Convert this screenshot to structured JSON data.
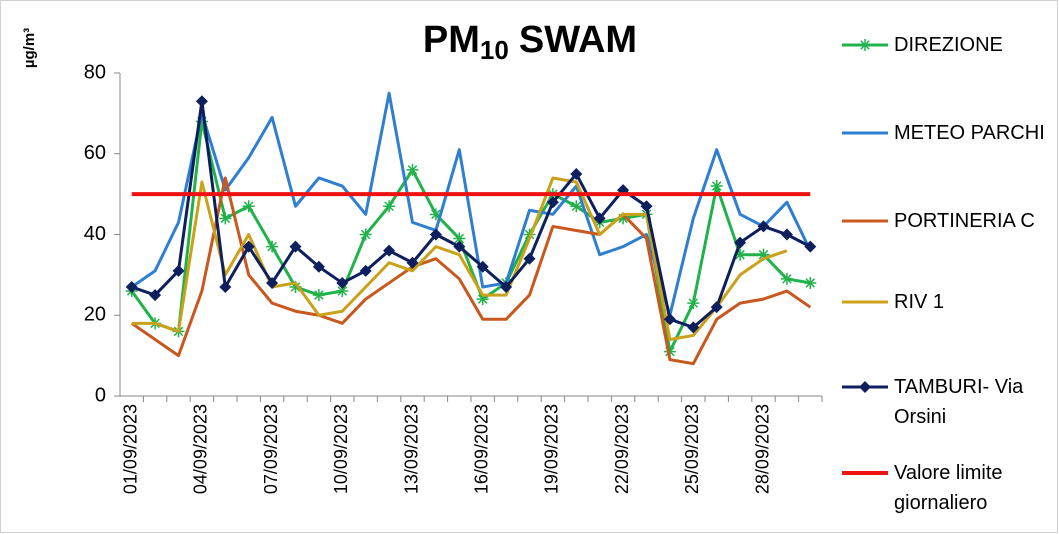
{
  "chart_data": {
    "type": "line",
    "title": [
      "PM",
      "10",
      "SWAM"
    ],
    "y_label": "µg/m³",
    "categories": [
      "01/09/2023",
      null,
      null,
      "04/09/2023",
      null,
      null,
      "07/09/2023",
      null,
      null,
      "10/09/2023",
      null,
      null,
      "13/09/2023",
      null,
      null,
      "16/09/2023",
      null,
      null,
      "19/09/2023",
      null,
      null,
      "22/09/2023",
      null,
      null,
      "25/09/2023",
      null,
      null,
      "28/09/2023",
      null,
      null
    ],
    "ylim": [
      0,
      80
    ],
    "yticks": [
      0,
      20,
      40,
      60,
      80
    ],
    "grid": false,
    "series": [
      {
        "name": "DIREZIONE",
        "color": "#22b24c",
        "marker": "star",
        "values": [
          26,
          18,
          16,
          68,
          44,
          47,
          37,
          27,
          25,
          26,
          40,
          47,
          56,
          45,
          39,
          24,
          28,
          40,
          50,
          47,
          43,
          44,
          45,
          11,
          23,
          52,
          35,
          35,
          29,
          28
        ]
      },
      {
        "name": "METEO PARCHI",
        "color": "#2f7fd0",
        "marker": "none",
        "values": [
          27,
          31,
          43,
          70,
          51,
          59,
          69,
          47,
          54,
          52,
          45,
          75,
          43,
          41,
          61,
          27,
          28,
          46,
          45,
          52,
          35,
          37,
          40,
          20,
          44,
          61,
          45,
          42,
          48,
          36
        ]
      },
      {
        "name": "PORTINERIA C",
        "color": "#c8581e",
        "marker": "none",
        "values": [
          18,
          14,
          10,
          26,
          54,
          30,
          23,
          21,
          20,
          18,
          24,
          28,
          32,
          34,
          29,
          19,
          19,
          25,
          42,
          41,
          40,
          45,
          39,
          9,
          8,
          19,
          23,
          24,
          26,
          22
        ]
      },
      {
        "name": "RIV 1",
        "color": "#c9a21a",
        "marker": "none",
        "values": [
          18,
          18,
          16,
          53,
          30,
          40,
          27,
          28,
          20,
          21,
          27,
          33,
          31,
          37,
          35,
          25,
          25,
          39,
          54,
          53,
          40,
          45,
          45,
          14,
          15,
          22,
          30,
          34,
          36,
          null
        ]
      },
      {
        "name": "TAMBURI- Via Orsini",
        "color": "#0d1f5c",
        "marker": "diamond",
        "values": [
          27,
          25,
          31,
          73,
          27,
          37,
          28,
          37,
          32,
          28,
          31,
          36,
          33,
          40,
          37,
          32,
          27,
          34,
          48,
          55,
          44,
          51,
          47,
          19,
          17,
          22,
          38,
          42,
          40,
          37
        ]
      },
      {
        "name": "Valore limite giornaliero",
        "color": "#ee1111",
        "marker": "none",
        "width": 4,
        "values": [
          50,
          50,
          50,
          50,
          50,
          50,
          50,
          50,
          50,
          50,
          50,
          50,
          50,
          50,
          50,
          50,
          50,
          50,
          50,
          50,
          50,
          50,
          50,
          50,
          50,
          50,
          50,
          50,
          50,
          50
        ]
      }
    ]
  }
}
